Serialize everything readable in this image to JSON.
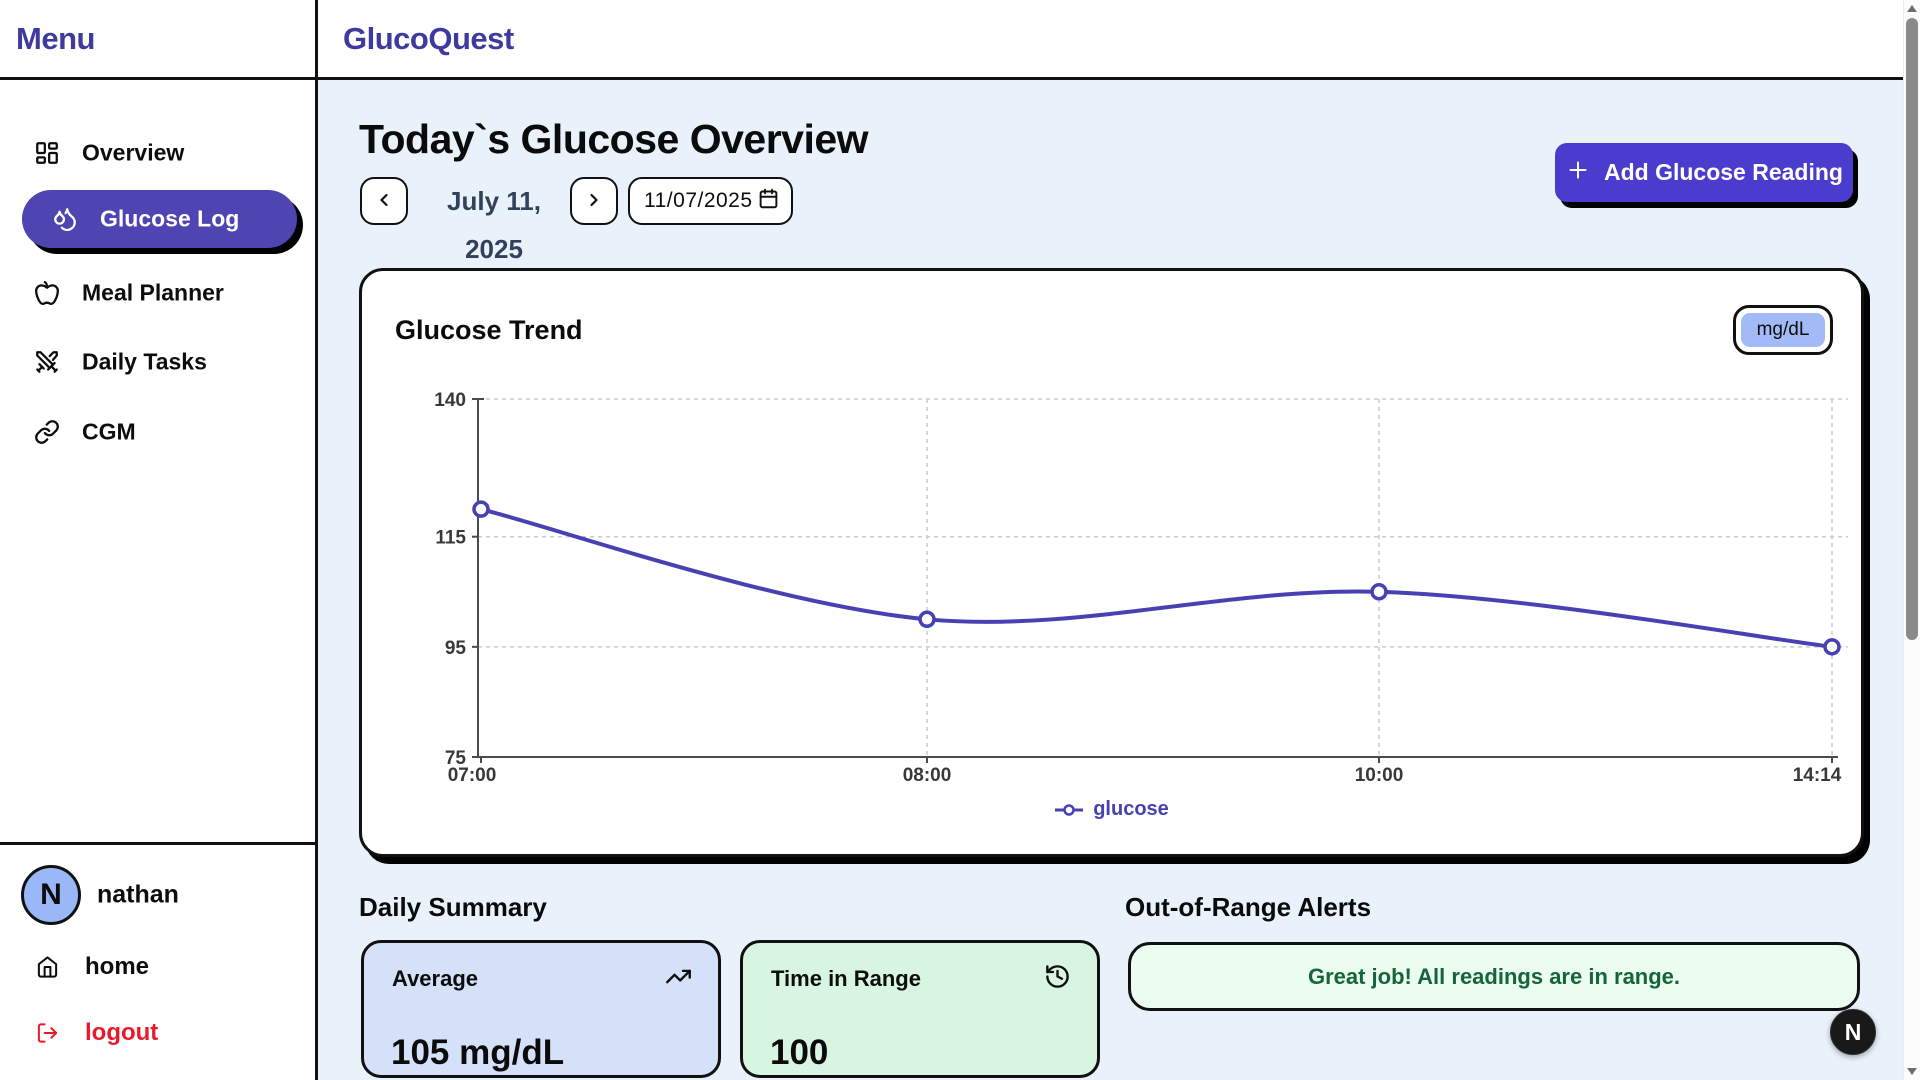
{
  "brand": {
    "menu_title": "Menu",
    "app_name": "GlucoQuest"
  },
  "sidebar": {
    "items": [
      {
        "label": "Overview",
        "icon": "dashboard-grid-icon",
        "active": false
      },
      {
        "label": "Glucose Log",
        "icon": "droplets-icon",
        "active": true
      },
      {
        "label": "Meal Planner",
        "icon": "apple-icon",
        "active": false
      },
      {
        "label": "Daily Tasks",
        "icon": "crossed-swords-icon",
        "active": false
      },
      {
        "label": "CGM",
        "icon": "link-icon",
        "active": false
      }
    ],
    "user": {
      "initial": "N",
      "name": "nathan"
    },
    "footer_links": [
      {
        "label": "home",
        "icon": "home-icon"
      },
      {
        "label": "logout",
        "icon": "logout-icon"
      }
    ]
  },
  "header": {
    "title": "Today`s Glucose Overview",
    "date_label": "July 11, 2025",
    "date_input_value": "11/07/2025",
    "add_button_label": "Add Glucose Reading"
  },
  "chart_card": {
    "title": "Glucose Trend",
    "unit_toggle": "mg/dL",
    "legend": "glucose"
  },
  "chart_data": {
    "type": "line",
    "x": [
      "07:00",
      "08:00",
      "10:00",
      "14:14"
    ],
    "series": [
      {
        "name": "glucose",
        "values": [
          120,
          100,
          105,
          95
        ]
      }
    ],
    "y_ticks": [
      75,
      95,
      115,
      140
    ],
    "ylim": [
      75,
      140
    ],
    "title": "Glucose Trend",
    "xlabel": "",
    "ylabel": "",
    "unit": "mg/dL",
    "grid": "dashed",
    "legend_position": "bottom",
    "line_color": "#4741b3",
    "point_style": "open-circle",
    "curve": "smooth"
  },
  "summary": {
    "heading": "Daily Summary",
    "cards": [
      {
        "label": "Average",
        "value": "105 mg/dL",
        "icon": "trending-up-icon"
      },
      {
        "label": "Time in Range",
        "value": "100",
        "icon": "history-clock-icon"
      }
    ]
  },
  "alerts": {
    "heading": "Out-of-Range Alerts",
    "message": "Great job! All readings are in range."
  },
  "dev_badge": {
    "label": "N"
  },
  "colors": {
    "brand_indigo": "#3f3a9d",
    "nav_active_bg": "#4e44b2",
    "button_bg": "#4a3ccd",
    "line_color": "#4741b3",
    "card_blue": "#d4e1f9",
    "card_green": "#d7f5e0",
    "alert_bg": "#eafdf0",
    "alert_text": "#17643a",
    "logout_red": "#e8192b",
    "main_bg": "#e9f1fb",
    "toggle_blue": "#a2bbf8",
    "avatar_blue": "#9ab7f7"
  }
}
